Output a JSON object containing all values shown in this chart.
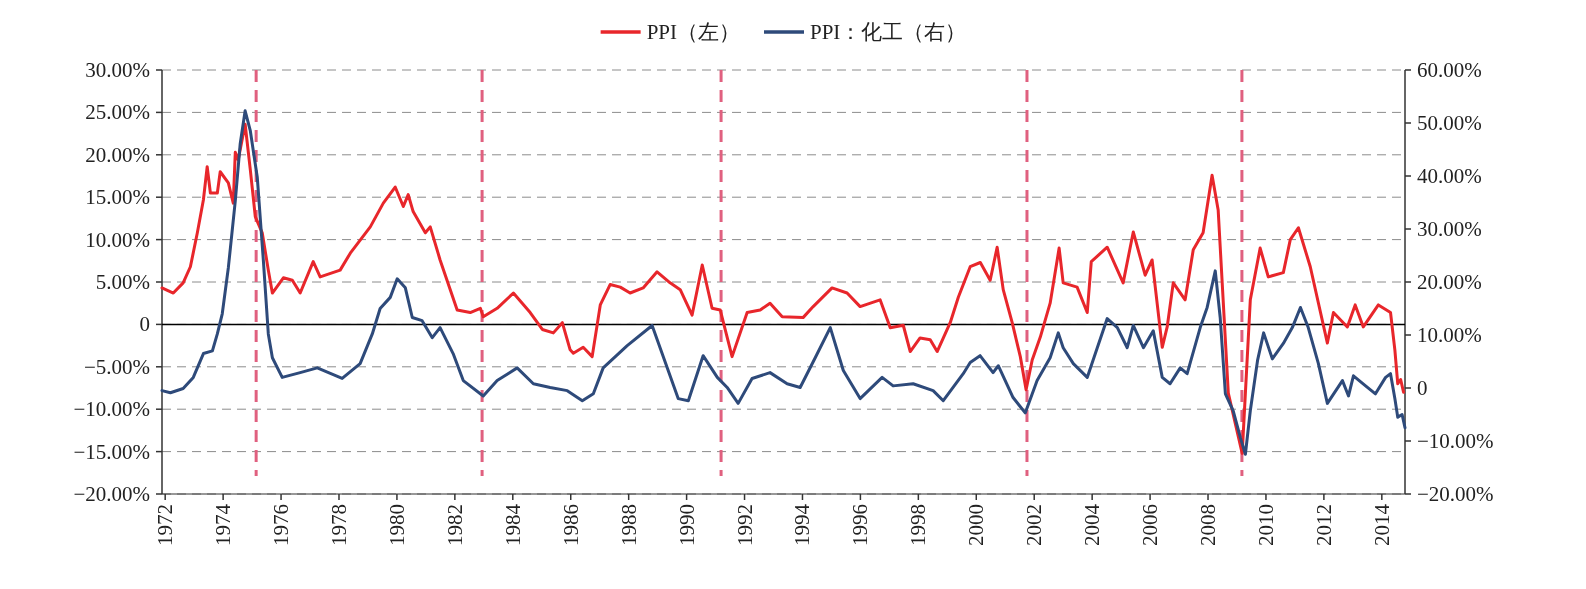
{
  "chart_data": {
    "type": "line",
    "legend": "top",
    "grid": "y",
    "xlim": [
      1971.89,
      2014.8
    ],
    "xticks": [
      1972,
      1974,
      1976,
      1978,
      1980,
      1982,
      1984,
      1986,
      1988,
      1990,
      1992,
      1994,
      1996,
      1998,
      2000,
      2002,
      2004,
      2006,
      2008,
      2010,
      2012,
      2014
    ],
    "ylim": [
      -20,
      30
    ],
    "yticks": [
      {
        "value": 30,
        "label": "30.00%"
      },
      {
        "value": 25,
        "label": "25.00%"
      },
      {
        "value": 20,
        "label": "20.00%"
      },
      {
        "value": 15,
        "label": "15.00%"
      },
      {
        "value": 10,
        "label": "10.00%"
      },
      {
        "value": 5,
        "label": "5.00%"
      },
      0,
      {
        "value": -5,
        "label": "−5.00%"
      },
      {
        "value": -10,
        "label": "−10.00%"
      },
      {
        "value": -15,
        "label": "−15.00%"
      },
      {
        "value": -20,
        "label": "−20.00%"
      }
    ],
    "y2lim": [
      -20,
      60
    ],
    "y2ticks": [
      {
        "value": 60,
        "label": "60.00%"
      },
      {
        "value": 50,
        "label": "50.00%"
      },
      {
        "value": 40,
        "label": "40.00%"
      },
      {
        "value": 30,
        "label": "30.00%"
      },
      {
        "value": 20,
        "label": "20.00%"
      },
      {
        "value": 10,
        "label": "10.00%"
      },
      0,
      {
        "value": -10,
        "label": "−10.00%"
      },
      {
        "value": -20,
        "label": "−20.00%"
      }
    ],
    "ref_lines": [
      {
        "axis": "y",
        "value": 0,
        "color": "#000000",
        "line_style": "solid"
      },
      {
        "axis": "x",
        "value": 1975.14,
        "color": "#e0607f",
        "line_style": "dashed"
      },
      {
        "axis": "x",
        "value": 1982.94,
        "color": "#e0607f",
        "line_style": "dashed"
      },
      {
        "axis": "x",
        "value": 1991.19,
        "color": "#e0607f",
        "line_style": "dashed"
      },
      {
        "axis": "x",
        "value": 2001.75,
        "color": "#e0607f",
        "line_style": "dashed"
      },
      {
        "axis": "x",
        "value": 2009.17,
        "color": "#e0607f",
        "line_style": "dashed"
      }
    ],
    "series": [
      {
        "name": "PPI（左）",
        "color": "#e8262b",
        "x": [
          1971.89,
          1972.28,
          1972.62,
          1972.87,
          1973.11,
          1973.32,
          1973.45,
          1973.56,
          1973.8,
          1973.9,
          1974.18,
          1974.35,
          1974.42,
          1974.52,
          1974.76,
          1974.94,
          1975.11,
          1975.35,
          1975.56,
          1975.7,
          1976.08,
          1976.39,
          1976.66,
          1977.11,
          1977.35,
          1978.04,
          1978.39,
          1979.08,
          1979.53,
          1979.94,
          1980.22,
          1980.39,
          1980.56,
          1980.98,
          1981.15,
          1981.49,
          1982.08,
          1982.53,
          1982.88,
          1982.98,
          1983.46,
          1984.02,
          1984.6,
          1985.02,
          1985.4,
          1985.71,
          1985.98,
          1986.09,
          1986.43,
          1986.74,
          1987.02,
          1987.36,
          1987.71,
          1988.05,
          1988.5,
          1988.98,
          1989.43,
          1989.78,
          1990.19,
          1990.54,
          1990.88,
          1991.16,
          1991.57,
          1992.09,
          1992.54,
          1992.88,
          1993.3,
          1994.02,
          1994.37,
          1995.02,
          1995.54,
          1995.99,
          1996.68,
          1997.03,
          1997.48,
          1997.72,
          1998.06,
          1998.41,
          1998.65,
          1999.1,
          1999.38,
          1999.79,
          2000.14,
          2000.48,
          2000.72,
          2000.93,
          2001.24,
          2001.52,
          2001.72,
          2001.93,
          2002.21,
          2002.55,
          2002.86,
          2003.0,
          2003.48,
          2003.83,
          2003.97,
          2004.52,
          2005.07,
          2005.42,
          2005.83,
          2006.07,
          2006.42,
          2006.59,
          2006.8,
          2007.21,
          2007.49,
          2007.83,
          2008.14,
          2008.35,
          2008.7,
          2009.18,
          2009.46,
          2009.8,
          2010.08,
          2010.6,
          2010.84,
          2011.12,
          2011.53,
          2012.12,
          2012.33,
          2012.81,
          2013.08,
          2013.36,
          2013.88,
          2014.3,
          2014.45,
          2014.55,
          2014.65,
          2014.75
        ],
        "values": [
          4.3,
          3.7,
          4.9,
          6.8,
          10.8,
          14.7,
          18.6,
          15.5,
          15.5,
          18.0,
          16.7,
          14.3,
          20.3,
          19.4,
          23.6,
          18.2,
          12.7,
          10.8,
          6.4,
          3.7,
          5.5,
          5.2,
          3.7,
          7.4,
          5.6,
          6.4,
          8.4,
          11.5,
          14.3,
          16.2,
          13.9,
          15.3,
          13.3,
          10.8,
          11.5,
          7.6,
          1.7,
          1.4,
          1.9,
          0.9,
          1.9,
          3.7,
          1.4,
          -0.6,
          -1.0,
          0.2,
          -3.0,
          -3.4,
          -2.7,
          -3.8,
          2.3,
          4.7,
          4.4,
          3.7,
          4.3,
          6.2,
          4.9,
          4.1,
          1.1,
          7.0,
          1.9,
          1.7,
          -3.8,
          1.4,
          1.7,
          2.5,
          0.9,
          0.8,
          2.1,
          4.3,
          3.7,
          2.1,
          2.9,
          -0.4,
          -0.1,
          -3.2,
          -1.6,
          -1.8,
          -3.2,
          0.2,
          3.2,
          6.8,
          7.3,
          5.2,
          9.1,
          4.1,
          0.2,
          -3.8,
          -7.7,
          -4.2,
          -1.5,
          2.5,
          9.0,
          4.9,
          4.4,
          1.4,
          7.4,
          9.1,
          4.9,
          10.9,
          5.8,
          7.6,
          -2.7,
          -0.3,
          4.9,
          2.9,
          8.8,
          10.8,
          17.6,
          13.5,
          -8.1,
          -15.2,
          2.9,
          9.0,
          5.6,
          6.1,
          10.0,
          11.4,
          6.8,
          -2.2,
          1.4,
          -0.3,
          2.3,
          -0.3,
          2.3,
          1.4,
          -3,
          -7,
          -6.5,
          -8
        ]
      },
      {
        "name": "PPI：化工（右）",
        "color": "#2e4a7a",
        "axis": "y2",
        "x": [
          1971.89,
          1972.18,
          1972.62,
          1972.97,
          1973.32,
          1973.63,
          1973.8,
          1973.97,
          1974.18,
          1974.42,
          1974.59,
          1974.76,
          1974.94,
          1975.18,
          1975.39,
          1975.56,
          1975.7,
          1976.04,
          1976.66,
          1977.25,
          1978.11,
          1978.73,
          1979.15,
          1979.42,
          1979.77,
          1980.01,
          1980.29,
          1980.53,
          1980.87,
          1981.22,
          1981.49,
          1981.94,
          1982.29,
          1982.98,
          1983.46,
          1984.15,
          1984.71,
          1985.29,
          1985.88,
          1986.4,
          1986.78,
          1987.12,
          1987.95,
          1988.81,
          1989.71,
          1990.06,
          1990.57,
          1991.06,
          1991.4,
          1991.78,
          1992.26,
          1992.88,
          1993.47,
          1993.92,
          1994.44,
          1994.96,
          1995.41,
          1995.99,
          1996.75,
          1997.13,
          1997.82,
          1998.51,
          1998.86,
          1999.55,
          1999.79,
          2000.13,
          2000.58,
          2000.76,
          2001.27,
          2001.69,
          2002.1,
          2002.55,
          2002.83,
          2003.0,
          2003.35,
          2003.83,
          2004.11,
          2004.52,
          2004.87,
          2005.21,
          2005.42,
          2005.77,
          2006.11,
          2006.42,
          2006.69,
          2007.04,
          2007.28,
          2007.73,
          2007.97,
          2008.25,
          2008.42,
          2008.6,
          2008.87,
          2009.12,
          2009.29,
          2009.46,
          2009.71,
          2009.92,
          2010.22,
          2010.6,
          2010.91,
          2011.19,
          2011.46,
          2011.81,
          2012.12,
          2012.64,
          2012.85,
          2013.02,
          2013.44,
          2013.78,
          2014.13,
          2014.3,
          2014.45,
          2014.55,
          2014.7,
          2014.8
        ],
        "values": [
          -0.5,
          -0.9,
          -0.1,
          2.0,
          6.5,
          7.0,
          10.2,
          14.0,
          22.7,
          35.3,
          46.1,
          52.3,
          48.5,
          39.7,
          24.0,
          10.2,
          5.7,
          2.0,
          2.9,
          3.8,
          1.8,
          4.6,
          10.2,
          15.0,
          17.1,
          20.6,
          18.9,
          13.3,
          12.7,
          9.5,
          11.4,
          6.5,
          1.4,
          -1.5,
          1.4,
          3.8,
          0.8,
          0.1,
          -0.5,
          -2.4,
          -1.1,
          3.8,
          8.0,
          11.8,
          -2.0,
          -2.4,
          6.1,
          2.0,
          0.1,
          -2.9,
          1.8,
          2.9,
          0.8,
          0.1,
          5.7,
          11.4,
          3.3,
          -2.0,
          2.0,
          0.4,
          0.8,
          -0.5,
          -2.4,
          2.7,
          4.8,
          6.1,
          2.9,
          4.2,
          -1.8,
          -4.7,
          1.4,
          5.7,
          10.4,
          7.6,
          4.6,
          2.0,
          6.5,
          13.1,
          11.4,
          7.6,
          11.8,
          7.6,
          10.8,
          2.0,
          0.8,
          3.8,
          2.7,
          11.4,
          15.2,
          22.1,
          13.3,
          -1.1,
          -4.3,
          -9.4,
          -12.5,
          -4.3,
          5.2,
          10.4,
          5.5,
          8.4,
          11.4,
          15.2,
          11.4,
          4.6,
          -2.9,
          1.4,
          -1.5,
          2.3,
          0.4,
          -1.1,
          2.0,
          2.7,
          -2,
          -5.5,
          -5,
          -7.5
        ]
      }
    ]
  }
}
